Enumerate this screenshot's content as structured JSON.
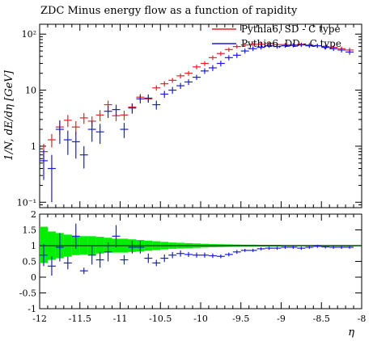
{
  "chart_data": {
    "type": "scatter",
    "title": "ZDC Minus energy flow as a function of rapidity",
    "xlabel": "η",
    "ylabel": "1/N, dE/dη [GeV]",
    "xlim": [
      -12,
      -8
    ],
    "x_ticks": [
      {
        "v": -12,
        "label": "-12"
      },
      {
        "v": -11.5,
        "label": "-11.5"
      },
      {
        "v": -11,
        "label": "-11"
      },
      {
        "v": -10.5,
        "label": "-10.5"
      },
      {
        "v": -10,
        "label": "-10"
      },
      {
        "v": -9.5,
        "label": "-9.5"
      },
      {
        "v": -9,
        "label": "-9"
      },
      {
        "v": -8.5,
        "label": "-8.5"
      },
      {
        "v": -8,
        "label": "-8"
      }
    ],
    "main_panel": {
      "yscale": "log",
      "ylim": [
        0.08,
        150
      ],
      "y_ticks": [
        {
          "v": 0.1,
          "label": "10⁻¹"
        },
        {
          "v": 1,
          "label": "1"
        },
        {
          "v": 10,
          "label": "10"
        },
        {
          "v": 100,
          "label": "10²"
        }
      ],
      "legend_position": "top-right",
      "series": [
        {
          "name": "Pythia6, SD - C type",
          "color": "#e8202a",
          "x": [
            -11.95,
            -11.85,
            -11.75,
            -11.65,
            -11.55,
            -11.45,
            -11.35,
            -11.25,
            -11.15,
            -11.05,
            -10.95,
            -10.85,
            -10.75,
            -10.65,
            -10.55,
            -10.45,
            -10.35,
            -10.25,
            -10.15,
            -10.05,
            -9.95,
            -9.85,
            -9.75,
            -9.65,
            -9.55,
            -9.45,
            -9.35,
            -9.25,
            -9.15,
            -9.05,
            -8.95,
            -8.85,
            -8.75,
            -8.65,
            -8.55,
            -8.45,
            -8.35,
            -8.25,
            -8.15
          ],
          "y": [
            0.8,
            1.3,
            2.2,
            2.9,
            2.2,
            3.2,
            2.8,
            3.6,
            5.5,
            3.5,
            3.6,
            5.0,
            7.5,
            7.0,
            11,
            13,
            15,
            18,
            20,
            26,
            30,
            38,
            45,
            53,
            60,
            64,
            66,
            66,
            68,
            65,
            65,
            64,
            66,
            64,
            62,
            60,
            58,
            55,
            52
          ],
          "yerr": [
            0.3,
            0.35,
            0.6,
            0.7,
            0.6,
            0.7,
            0.6,
            0.8,
            1.0,
            0.7,
            0.7,
            0.8,
            1.0,
            1.0,
            1.2,
            1.4,
            1.5,
            1.8,
            2.0,
            2.5,
            3,
            3.5,
            4,
            4.5,
            5,
            5,
            5,
            5,
            5,
            5,
            5,
            5,
            5,
            5,
            5,
            5,
            5,
            5,
            5
          ]
        },
        {
          "name": "Pythia6, DD - C type",
          "color": "#1a1ae6",
          "x": [
            -11.95,
            -11.85,
            -11.75,
            -11.65,
            -11.55,
            -11.45,
            -11.35,
            -11.25,
            -11.15,
            -11.05,
            -10.95,
            -10.85,
            -10.75,
            -10.65,
            -10.55,
            -10.45,
            -10.35,
            -10.25,
            -10.15,
            -10.05,
            -9.95,
            -9.85,
            -9.75,
            -9.65,
            -9.55,
            -9.45,
            -9.35,
            -9.25,
            -9.15,
            -9.05,
            -8.95,
            -8.85,
            -8.75,
            -8.65,
            -8.55,
            -8.45,
            -8.35,
            -8.25,
            -8.15
          ],
          "y": [
            0.55,
            0.4,
            2.0,
            1.3,
            1.2,
            0.7,
            2.0,
            1.8,
            4.2,
            4.5,
            2.0,
            4.8,
            7.0,
            7.2,
            5.5,
            8.5,
            10,
            12,
            14,
            17,
            22,
            25,
            30,
            38,
            42,
            50,
            55,
            58,
            62,
            60,
            62,
            63,
            64,
            62,
            62,
            58,
            55,
            52,
            48
          ],
          "yerr": [
            0.3,
            0.3,
            0.9,
            0.6,
            0.6,
            0.3,
            0.8,
            0.7,
            1.0,
            1.0,
            0.6,
            1.0,
            1.2,
            1.2,
            1.0,
            1.2,
            1.4,
            1.5,
            1.6,
            1.8,
            2.5,
            3,
            3.5,
            4,
            4.5,
            5,
            5,
            5,
            5,
            5,
            5,
            5,
            5,
            5,
            5,
            5,
            5,
            5,
            5
          ]
        }
      ]
    },
    "ratio_panel": {
      "ylim": [
        -1,
        2
      ],
      "y_ticks": [
        {
          "v": -1,
          "label": "-1"
        },
        {
          "v": -0.5,
          "label": "-0.5"
        },
        {
          "v": 0,
          "label": "0"
        },
        {
          "v": 0.5,
          "label": "0.5"
        },
        {
          "v": 1,
          "label": "1"
        },
        {
          "v": 1.5,
          "label": "1.5"
        },
        {
          "v": 2,
          "label": "2"
        }
      ],
      "band_color": "#00ee00",
      "band": {
        "x": [
          -12,
          -11.9,
          -11.8,
          -11.7,
          -11.6,
          -11.5,
          -11.4,
          -11.3,
          -11.2,
          -11.1,
          -11,
          -10.9,
          -10.8,
          -10.7,
          -10.6,
          -10.5,
          -10.4,
          -10.3,
          -10.2,
          -10.1,
          -10,
          -9.9,
          -9.8,
          -9.7,
          -9.6,
          -9.5,
          -9.4,
          -9.3,
          -9.2,
          -9.1,
          -9,
          -8.9,
          -8.8,
          -8.7,
          -8.6,
          -8.5,
          -8.4,
          -8.3,
          -8.2,
          -8.1
        ],
        "lo": [
          0.45,
          0.55,
          0.6,
          0.65,
          0.7,
          0.72,
          0.72,
          0.75,
          0.78,
          0.78,
          0.78,
          0.8,
          0.82,
          0.84,
          0.86,
          0.88,
          0.9,
          0.91,
          0.92,
          0.93,
          0.94,
          0.95,
          0.955,
          0.96,
          0.965,
          0.97,
          0.97,
          0.975,
          0.975,
          0.975,
          0.98,
          0.98,
          0.98,
          0.98,
          0.98,
          0.98,
          0.98,
          0.98,
          0.98,
          0.98
        ],
        "hi": [
          1.6,
          1.45,
          1.4,
          1.35,
          1.3,
          1.3,
          1.3,
          1.28,
          1.25,
          1.22,
          1.22,
          1.2,
          1.18,
          1.16,
          1.14,
          1.12,
          1.1,
          1.09,
          1.08,
          1.07,
          1.06,
          1.05,
          1.045,
          1.04,
          1.035,
          1.03,
          1.03,
          1.025,
          1.025,
          1.025,
          1.02,
          1.02,
          1.02,
          1.02,
          1.02,
          1.02,
          1.02,
          1.02,
          1.02,
          1.02
        ]
      },
      "ratio": {
        "x": [
          -11.95,
          -11.85,
          -11.75,
          -11.65,
          -11.55,
          -11.45,
          -11.35,
          -11.25,
          -11.15,
          -11.05,
          -10.95,
          -10.85,
          -10.75,
          -10.65,
          -10.55,
          -10.45,
          -10.35,
          -10.25,
          -10.15,
          -10.05,
          -9.95,
          -9.85,
          -9.75,
          -9.65,
          -9.55,
          -9.45,
          -9.35,
          -9.25,
          -9.15,
          -9.05,
          -8.95,
          -8.85,
          -8.75,
          -8.65,
          -8.55,
          -8.45,
          -8.35,
          -8.25,
          -8.15
        ],
        "y": [
          0.7,
          0.35,
          0.95,
          0.45,
          1.3,
          0.2,
          0.7,
          0.55,
          0.8,
          1.3,
          0.55,
          0.95,
          0.95,
          0.6,
          0.45,
          0.6,
          0.7,
          0.75,
          0.72,
          0.7,
          0.7,
          0.68,
          0.66,
          0.72,
          0.8,
          0.85,
          0.85,
          0.9,
          0.92,
          0.92,
          0.95,
          0.95,
          0.92,
          0.95,
          0.98,
          0.96,
          0.95,
          0.95,
          0.95
        ],
        "yerr": [
          0.35,
          0.3,
          0.45,
          0.2,
          0.4,
          0.1,
          0.3,
          0.25,
          0.3,
          0.35,
          0.15,
          0.2,
          0.2,
          0.15,
          0.1,
          0.12,
          0.1,
          0.1,
          0.08,
          0.08,
          0.08,
          0.07,
          0.06,
          0.06,
          0.06,
          0.05,
          0.05,
          0.05,
          0.05,
          0.05,
          0.05,
          0.05,
          0.05,
          0.05,
          0.05,
          0.05,
          0.05,
          0.05,
          0.05
        ]
      }
    }
  }
}
